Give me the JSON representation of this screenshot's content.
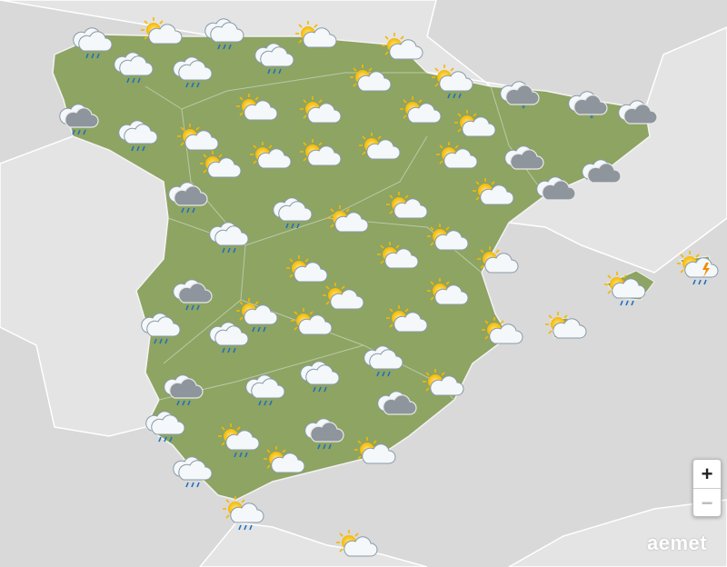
{
  "zoom_controls": {
    "zoom_in": "+",
    "zoom_out": "−"
  },
  "logo": "aemet"
}
